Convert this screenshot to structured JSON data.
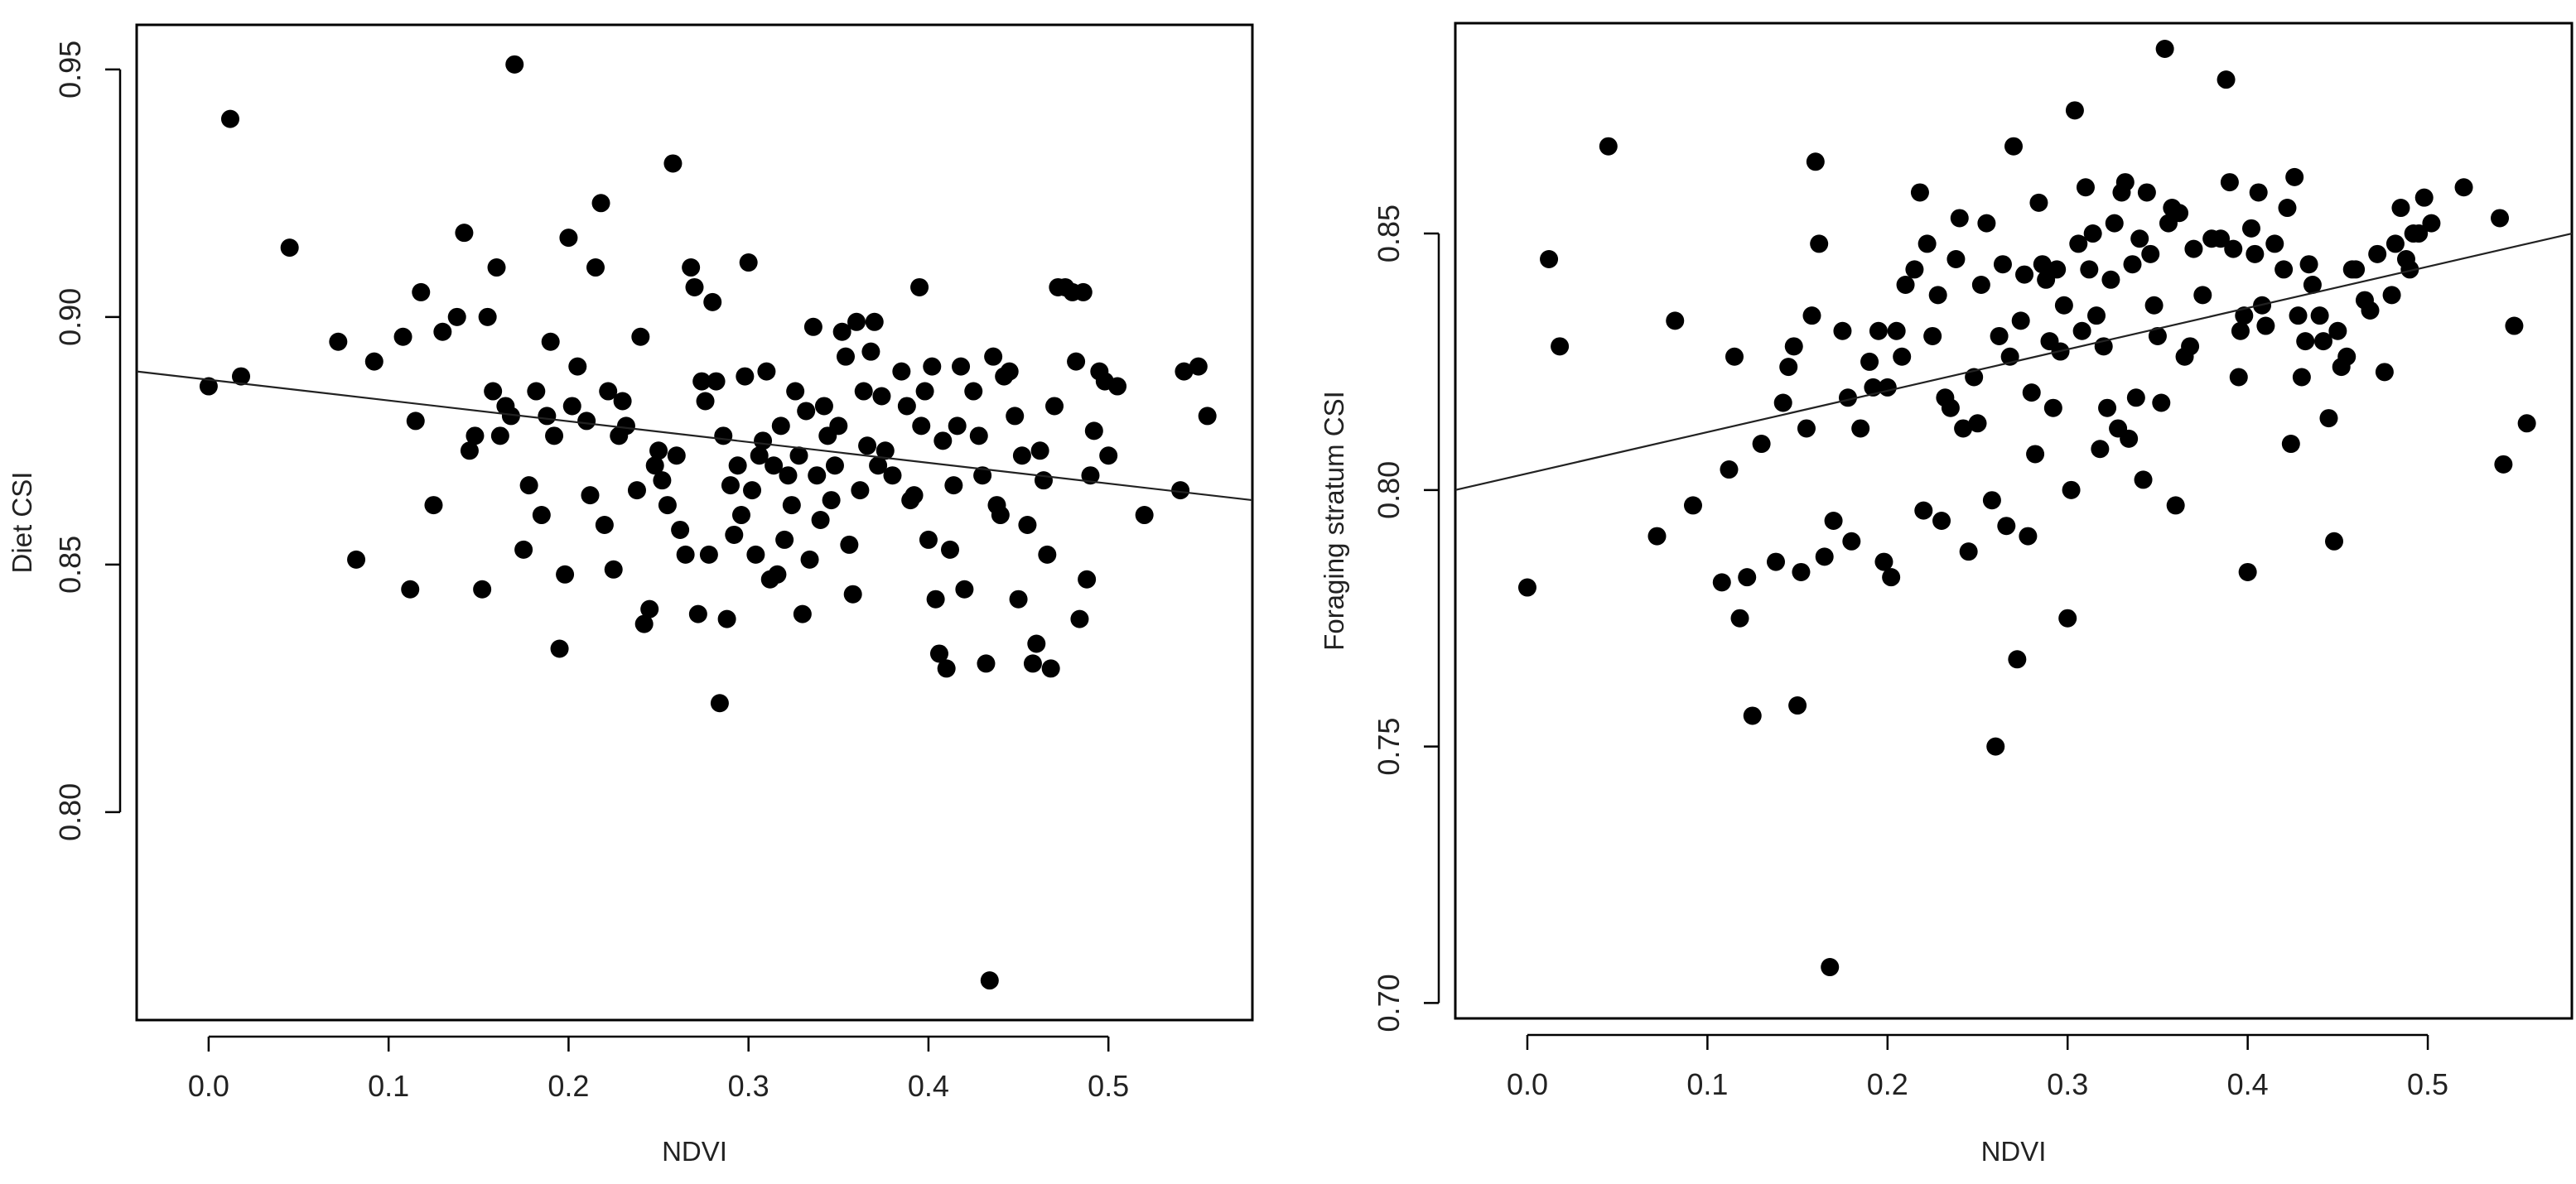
{
  "chart_data": [
    {
      "type": "scatter",
      "xlabel": "NDVI",
      "ylabel": "Diet CSI",
      "xlim": [
        -0.04,
        0.58
      ],
      "ylim": [
        0.758,
        0.959
      ],
      "xticks": [
        "0.0",
        "0.1",
        "0.2",
        "0.3",
        "0.4",
        "0.5"
      ],
      "yticks": [
        "0.80",
        "0.85",
        "0.90",
        "0.95"
      ],
      "regression": {
        "x": [
          -0.04,
          0.58
        ],
        "y": [
          0.889,
          0.863
        ]
      },
      "points": [
        [
          0.0,
          0.886
        ],
        [
          0.012,
          0.94
        ],
        [
          0.018,
          0.888
        ],
        [
          0.045,
          0.914
        ],
        [
          0.072,
          0.895
        ],
        [
          0.082,
          0.851
        ],
        [
          0.092,
          0.891
        ],
        [
          0.108,
          0.896
        ],
        [
          0.112,
          0.845
        ],
        [
          0.115,
          0.879
        ],
        [
          0.118,
          0.905
        ],
        [
          0.125,
          0.862
        ],
        [
          0.13,
          0.897
        ],
        [
          0.138,
          0.9
        ],
        [
          0.142,
          0.917
        ],
        [
          0.145,
          0.873
        ],
        [
          0.148,
          0.876
        ],
        [
          0.152,
          0.845
        ],
        [
          0.155,
          0.9
        ],
        [
          0.158,
          0.885
        ],
        [
          0.16,
          0.91
        ],
        [
          0.162,
          0.876
        ],
        [
          0.165,
          0.882
        ],
        [
          0.168,
          0.88
        ],
        [
          0.17,
          0.951
        ],
        [
          0.175,
          0.853
        ],
        [
          0.178,
          0.866
        ],
        [
          0.182,
          0.885
        ],
        [
          0.185,
          0.86
        ],
        [
          0.188,
          0.88
        ],
        [
          0.19,
          0.895
        ],
        [
          0.192,
          0.876
        ],
        [
          0.195,
          0.833
        ],
        [
          0.198,
          0.848
        ],
        [
          0.2,
          0.916
        ],
        [
          0.202,
          0.882
        ],
        [
          0.205,
          0.89
        ],
        [
          0.21,
          0.879
        ],
        [
          0.212,
          0.864
        ],
        [
          0.215,
          0.91
        ],
        [
          0.218,
          0.923
        ],
        [
          0.22,
          0.858
        ],
        [
          0.222,
          0.885
        ],
        [
          0.225,
          0.849
        ],
        [
          0.228,
          0.876
        ],
        [
          0.23,
          0.883
        ],
        [
          0.232,
          0.878
        ],
        [
          0.238,
          0.865
        ],
        [
          0.24,
          0.896
        ],
        [
          0.242,
          0.838
        ],
        [
          0.245,
          0.841
        ],
        [
          0.248,
          0.87
        ],
        [
          0.25,
          0.873
        ],
        [
          0.252,
          0.867
        ],
        [
          0.255,
          0.862
        ],
        [
          0.258,
          0.931
        ],
        [
          0.26,
          0.872
        ],
        [
          0.262,
          0.857
        ],
        [
          0.265,
          0.852
        ],
        [
          0.268,
          0.91
        ],
        [
          0.27,
          0.906
        ],
        [
          0.272,
          0.84
        ],
        [
          0.274,
          0.887
        ],
        [
          0.276,
          0.883
        ],
        [
          0.278,
          0.852
        ],
        [
          0.28,
          0.903
        ],
        [
          0.282,
          0.887
        ],
        [
          0.284,
          0.822
        ],
        [
          0.286,
          0.876
        ],
        [
          0.288,
          0.839
        ],
        [
          0.29,
          0.866
        ],
        [
          0.292,
          0.856
        ],
        [
          0.294,
          0.87
        ],
        [
          0.296,
          0.86
        ],
        [
          0.298,
          0.888
        ],
        [
          0.3,
          0.911
        ],
        [
          0.302,
          0.865
        ],
        [
          0.304,
          0.852
        ],
        [
          0.306,
          0.872
        ],
        [
          0.308,
          0.875
        ],
        [
          0.31,
          0.889
        ],
        [
          0.312,
          0.847
        ],
        [
          0.314,
          0.87
        ],
        [
          0.316,
          0.848
        ],
        [
          0.318,
          0.878
        ],
        [
          0.32,
          0.855
        ],
        [
          0.322,
          0.868
        ],
        [
          0.324,
          0.862
        ],
        [
          0.326,
          0.885
        ],
        [
          0.328,
          0.872
        ],
        [
          0.33,
          0.84
        ],
        [
          0.332,
          0.881
        ],
        [
          0.334,
          0.851
        ],
        [
          0.336,
          0.898
        ],
        [
          0.338,
          0.868
        ],
        [
          0.34,
          0.859
        ],
        [
          0.342,
          0.882
        ],
        [
          0.344,
          0.876
        ],
        [
          0.346,
          0.863
        ],
        [
          0.348,
          0.87
        ],
        [
          0.35,
          0.878
        ],
        [
          0.352,
          0.897
        ],
        [
          0.354,
          0.892
        ],
        [
          0.356,
          0.854
        ],
        [
          0.358,
          0.844
        ],
        [
          0.36,
          0.899
        ],
        [
          0.362,
          0.865
        ],
        [
          0.364,
          0.885
        ],
        [
          0.366,
          0.874
        ],
        [
          0.368,
          0.893
        ],
        [
          0.37,
          0.899
        ],
        [
          0.372,
          0.87
        ],
        [
          0.374,
          0.884
        ],
        [
          0.376,
          0.873
        ],
        [
          0.38,
          0.868
        ],
        [
          0.385,
          0.889
        ],
        [
          0.388,
          0.882
        ],
        [
          0.39,
          0.863
        ],
        [
          0.392,
          0.864
        ],
        [
          0.395,
          0.906
        ],
        [
          0.396,
          0.878
        ],
        [
          0.398,
          0.885
        ],
        [
          0.4,
          0.855
        ],
        [
          0.402,
          0.89
        ],
        [
          0.404,
          0.843
        ],
        [
          0.406,
          0.832
        ],
        [
          0.408,
          0.875
        ],
        [
          0.41,
          0.829
        ],
        [
          0.412,
          0.853
        ],
        [
          0.414,
          0.866
        ],
        [
          0.416,
          0.878
        ],
        [
          0.418,
          0.89
        ],
        [
          0.42,
          0.845
        ],
        [
          0.425,
          0.885
        ],
        [
          0.428,
          0.876
        ],
        [
          0.43,
          0.868
        ],
        [
          0.432,
          0.83
        ],
        [
          0.434,
          0.766
        ],
        [
          0.436,
          0.892
        ],
        [
          0.438,
          0.862
        ],
        [
          0.44,
          0.86
        ],
        [
          0.442,
          0.888
        ],
        [
          0.445,
          0.889
        ],
        [
          0.448,
          0.88
        ],
        [
          0.45,
          0.843
        ],
        [
          0.452,
          0.872
        ],
        [
          0.455,
          0.858
        ],
        [
          0.458,
          0.83
        ],
        [
          0.46,
          0.834
        ],
        [
          0.462,
          0.873
        ],
        [
          0.464,
          0.867
        ],
        [
          0.466,
          0.852
        ],
        [
          0.468,
          0.829
        ],
        [
          0.47,
          0.882
        ],
        [
          0.472,
          0.906
        ],
        [
          0.476,
          0.906
        ],
        [
          0.48,
          0.905
        ],
        [
          0.482,
          0.891
        ],
        [
          0.484,
          0.839
        ],
        [
          0.486,
          0.905
        ],
        [
          0.488,
          0.847
        ],
        [
          0.49,
          0.868
        ],
        [
          0.492,
          0.877
        ],
        [
          0.495,
          0.889
        ],
        [
          0.498,
          0.887
        ],
        [
          0.5,
          0.872
        ],
        [
          0.505,
          0.886
        ],
        [
          0.52,
          0.86
        ],
        [
          0.54,
          0.865
        ],
        [
          0.542,
          0.889
        ],
        [
          0.55,
          0.89
        ],
        [
          0.555,
          0.88
        ]
      ]
    },
    {
      "type": "scatter",
      "xlabel": "NDVI",
      "ylabel": "Foraging stratum CSI",
      "xlim": [
        -0.04,
        0.58
      ],
      "ylim": [
        0.697,
        0.891
      ],
      "xticks": [
        "0.0",
        "0.1",
        "0.2",
        "0.3",
        "0.4",
        "0.5"
      ],
      "yticks": [
        "0.70",
        "0.75",
        "0.80",
        "0.85"
      ],
      "regression": {
        "x": [
          -0.04,
          0.58
        ],
        "y": [
          0.8,
          0.85
        ]
      },
      "points": [
        [
          0.0,
          0.781
        ],
        [
          0.012,
          0.845
        ],
        [
          0.018,
          0.828
        ],
        [
          0.045,
          0.867
        ],
        [
          0.072,
          0.791
        ],
        [
          0.082,
          0.833
        ],
        [
          0.092,
          0.797
        ],
        [
          0.108,
          0.782
        ],
        [
          0.112,
          0.804
        ],
        [
          0.115,
          0.826
        ],
        [
          0.118,
          0.775
        ],
        [
          0.122,
          0.783
        ],
        [
          0.125,
          0.756
        ],
        [
          0.13,
          0.809
        ],
        [
          0.138,
          0.786
        ],
        [
          0.142,
          0.817
        ],
        [
          0.145,
          0.824
        ],
        [
          0.148,
          0.828
        ],
        [
          0.15,
          0.758
        ],
        [
          0.152,
          0.784
        ],
        [
          0.155,
          0.812
        ],
        [
          0.158,
          0.834
        ],
        [
          0.16,
          0.864
        ],
        [
          0.162,
          0.848
        ],
        [
          0.165,
          0.787
        ],
        [
          0.168,
          0.707
        ],
        [
          0.17,
          0.794
        ],
        [
          0.175,
          0.831
        ],
        [
          0.178,
          0.818
        ],
        [
          0.18,
          0.79
        ],
        [
          0.185,
          0.812
        ],
        [
          0.19,
          0.825
        ],
        [
          0.192,
          0.82
        ],
        [
          0.195,
          0.831
        ],
        [
          0.198,
          0.786
        ],
        [
          0.2,
          0.82
        ],
        [
          0.202,
          0.783
        ],
        [
          0.205,
          0.831
        ],
        [
          0.208,
          0.826
        ],
        [
          0.21,
          0.84
        ],
        [
          0.215,
          0.843
        ],
        [
          0.218,
          0.858
        ],
        [
          0.22,
          0.796
        ],
        [
          0.222,
          0.848
        ],
        [
          0.225,
          0.83
        ],
        [
          0.228,
          0.838
        ],
        [
          0.23,
          0.794
        ],
        [
          0.232,
          0.818
        ],
        [
          0.235,
          0.816
        ],
        [
          0.238,
          0.845
        ],
        [
          0.24,
          0.853
        ],
        [
          0.242,
          0.812
        ],
        [
          0.245,
          0.788
        ],
        [
          0.248,
          0.822
        ],
        [
          0.25,
          0.813
        ],
        [
          0.252,
          0.84
        ],
        [
          0.255,
          0.852
        ],
        [
          0.258,
          0.798
        ],
        [
          0.26,
          0.75
        ],
        [
          0.262,
          0.83
        ],
        [
          0.264,
          0.844
        ],
        [
          0.266,
          0.793
        ],
        [
          0.268,
          0.826
        ],
        [
          0.27,
          0.867
        ],
        [
          0.272,
          0.767
        ],
        [
          0.274,
          0.833
        ],
        [
          0.276,
          0.842
        ],
        [
          0.278,
          0.791
        ],
        [
          0.28,
          0.819
        ],
        [
          0.282,
          0.807
        ],
        [
          0.284,
          0.856
        ],
        [
          0.286,
          0.844
        ],
        [
          0.288,
          0.841
        ],
        [
          0.29,
          0.829
        ],
        [
          0.292,
          0.816
        ],
        [
          0.294,
          0.843
        ],
        [
          0.296,
          0.827
        ],
        [
          0.298,
          0.836
        ],
        [
          0.3,
          0.775
        ],
        [
          0.302,
          0.8
        ],
        [
          0.304,
          0.874
        ],
        [
          0.306,
          0.848
        ],
        [
          0.308,
          0.831
        ],
        [
          0.31,
          0.859
        ],
        [
          0.312,
          0.843
        ],
        [
          0.314,
          0.85
        ],
        [
          0.316,
          0.834
        ],
        [
          0.318,
          0.808
        ],
        [
          0.32,
          0.828
        ],
        [
          0.322,
          0.816
        ],
        [
          0.324,
          0.841
        ],
        [
          0.326,
          0.852
        ],
        [
          0.328,
          0.812
        ],
        [
          0.33,
          0.858
        ],
        [
          0.332,
          0.86
        ],
        [
          0.334,
          0.81
        ],
        [
          0.336,
          0.844
        ],
        [
          0.338,
          0.818
        ],
        [
          0.34,
          0.849
        ],
        [
          0.342,
          0.802
        ],
        [
          0.344,
          0.858
        ],
        [
          0.346,
          0.846
        ],
        [
          0.348,
          0.836
        ],
        [
          0.35,
          0.83
        ],
        [
          0.352,
          0.817
        ],
        [
          0.354,
          0.886
        ],
        [
          0.356,
          0.852
        ],
        [
          0.358,
          0.855
        ],
        [
          0.36,
          0.797
        ],
        [
          0.362,
          0.854
        ],
        [
          0.365,
          0.826
        ],
        [
          0.368,
          0.828
        ],
        [
          0.37,
          0.847
        ],
        [
          0.375,
          0.838
        ],
        [
          0.38,
          0.849
        ],
        [
          0.385,
          0.849
        ],
        [
          0.388,
          0.88
        ],
        [
          0.39,
          0.86
        ],
        [
          0.392,
          0.847
        ],
        [
          0.395,
          0.822
        ],
        [
          0.396,
          0.831
        ],
        [
          0.398,
          0.834
        ],
        [
          0.4,
          0.784
        ],
        [
          0.402,
          0.851
        ],
        [
          0.404,
          0.846
        ],
        [
          0.406,
          0.858
        ],
        [
          0.408,
          0.836
        ],
        [
          0.41,
          0.832
        ],
        [
          0.415,
          0.848
        ],
        [
          0.42,
          0.843
        ],
        [
          0.422,
          0.855
        ],
        [
          0.424,
          0.809
        ],
        [
          0.426,
          0.861
        ],
        [
          0.428,
          0.834
        ],
        [
          0.43,
          0.822
        ],
        [
          0.432,
          0.829
        ],
        [
          0.434,
          0.844
        ],
        [
          0.436,
          0.84
        ],
        [
          0.44,
          0.834
        ],
        [
          0.442,
          0.829
        ],
        [
          0.445,
          0.814
        ],
        [
          0.448,
          0.79
        ],
        [
          0.45,
          0.831
        ],
        [
          0.452,
          0.824
        ],
        [
          0.455,
          0.826
        ],
        [
          0.458,
          0.843
        ],
        [
          0.46,
          0.843
        ],
        [
          0.465,
          0.837
        ],
        [
          0.468,
          0.835
        ],
        [
          0.472,
          0.846
        ],
        [
          0.476,
          0.823
        ],
        [
          0.48,
          0.838
        ],
        [
          0.482,
          0.848
        ],
        [
          0.485,
          0.855
        ],
        [
          0.488,
          0.845
        ],
        [
          0.49,
          0.843
        ],
        [
          0.492,
          0.85
        ],
        [
          0.495,
          0.85
        ],
        [
          0.498,
          0.857
        ],
        [
          0.502,
          0.852
        ],
        [
          0.52,
          0.859
        ],
        [
          0.54,
          0.853
        ],
        [
          0.542,
          0.805
        ],
        [
          0.548,
          0.832
        ],
        [
          0.555,
          0.813
        ]
      ]
    }
  ]
}
